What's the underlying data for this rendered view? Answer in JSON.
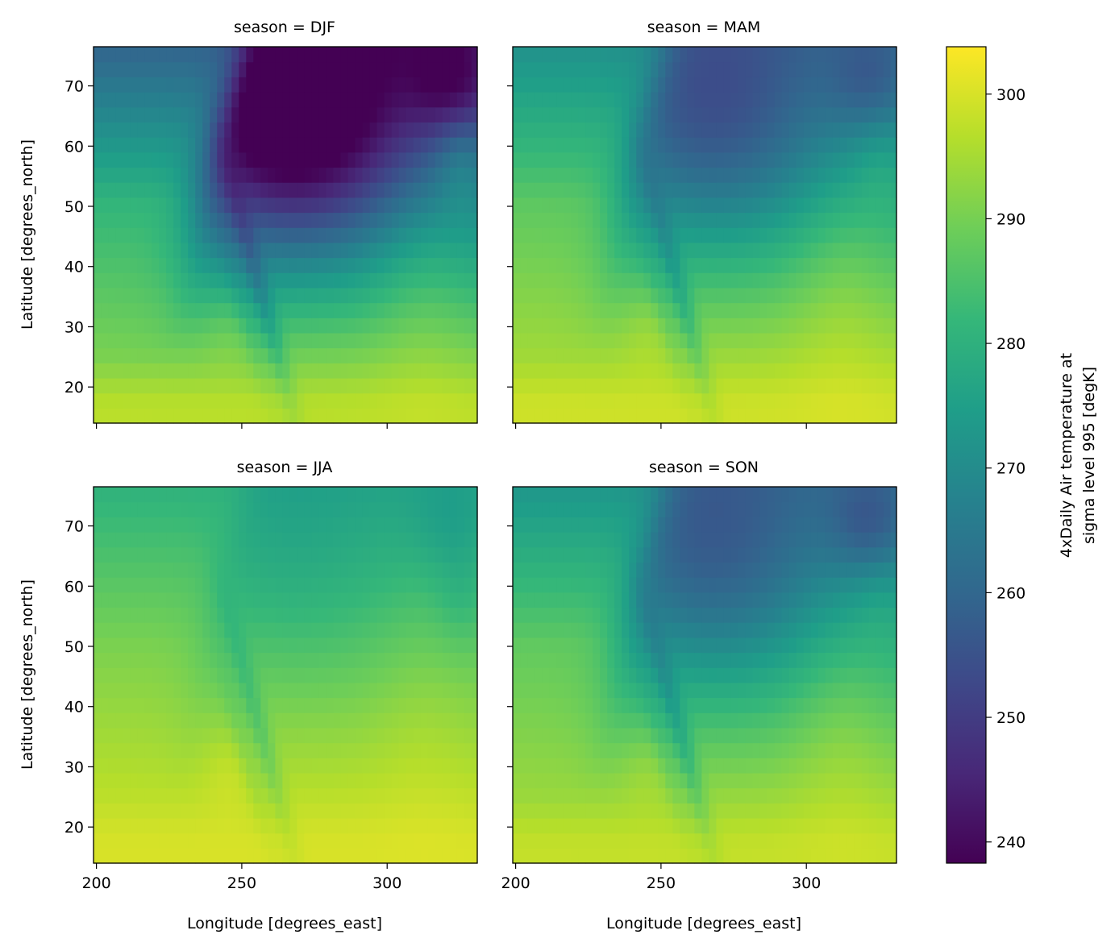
{
  "chart_data": {
    "type": "heatmap",
    "facet_key": "season",
    "panels": [
      {
        "title": "season = DJF",
        "season": "DJF"
      },
      {
        "title": "season = MAM",
        "season": "MAM"
      },
      {
        "title": "season = JJA",
        "season": "JJA"
      },
      {
        "title": "season = SON",
        "season": "SON"
      }
    ],
    "xlabel": "Longitude [degrees_east]",
    "ylabel": "Latitude [degrees_north]",
    "xlim": [
      199,
      331
    ],
    "ylim": [
      14,
      76.5
    ],
    "xticks": [
      200,
      250,
      300
    ],
    "yticks": [
      20,
      30,
      40,
      50,
      60,
      70
    ],
    "grid_resolution": {
      "dlon": 2.5,
      "dlat": 2.5
    },
    "colorbar": {
      "label_lines": [
        "4xDaily Air temperature at",
        "sigma level 995 [degK]"
      ],
      "range": [
        238.3,
        303.8
      ],
      "ticks": [
        240,
        250,
        260,
        270,
        280,
        290,
        300
      ],
      "colormap": "viridis",
      "colormap_stops": [
        "#440154",
        "#482878",
        "#3e4989",
        "#31688e",
        "#26828e",
        "#1f9e89",
        "#35b779",
        "#6ece58",
        "#b5de2b",
        "#fde725"
      ]
    },
    "approx_values_degK": {
      "DJF": {
        "far_north_70N": 242,
        "interior_50N": 252,
        "west_coast_50N": 279,
        "southeast_20N": 297
      },
      "MAM": {
        "far_north_70N": 255,
        "interior_50N": 265,
        "west_coast_50N": 282,
        "southeast_20N": 298
      },
      "JJA": {
        "far_north_70N": 275,
        "interior_50N": 288,
        "west_coast_50N": 287,
        "southeast_20N": 300
      },
      "SON": {
        "far_north_70N": 258,
        "interior_50N": 268,
        "west_coast_50N": 284,
        "southeast_20N": 298
      }
    }
  }
}
